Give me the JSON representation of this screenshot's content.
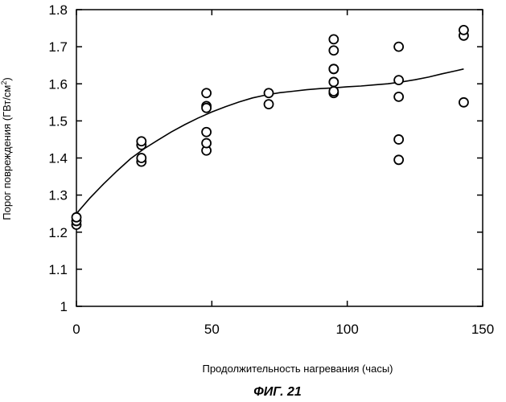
{
  "chart_data": {
    "type": "scatter",
    "title": "",
    "caption": "ФИГ. 21",
    "xlabel": "Продолжительность нагревания (часы)",
    "ylabel_main": "Порог повреждения (ГВт/см",
    "ylabel_sup": "2",
    "ylabel_end": ")",
    "xlim": [
      0,
      150
    ],
    "ylim": [
      1.0,
      1.8
    ],
    "xticks": [
      0,
      50,
      100,
      150
    ],
    "xtick_labels": [
      "0",
      "50",
      "100",
      "150"
    ],
    "yticks": [
      1.0,
      1.1,
      1.2,
      1.3,
      1.4,
      1.5,
      1.6,
      1.7,
      1.8
    ],
    "ytick_labels": [
      "1",
      "1.1",
      "1.2",
      "1.3",
      "1.4",
      "1.5",
      "1.6",
      "1.7",
      "1.8"
    ],
    "grid": false,
    "legend": "none",
    "series": [
      {
        "kind": "points",
        "marker": "open-circle",
        "x": [
          0,
          0,
          0,
          24,
          24,
          24,
          24,
          48,
          48,
          48,
          48,
          48,
          48,
          71,
          71,
          95,
          95,
          95,
          95,
          95,
          95,
          95,
          119,
          119,
          119,
          119,
          119,
          143,
          143,
          143
        ],
        "y": [
          1.22,
          1.23,
          1.24,
          1.39,
          1.4,
          1.435,
          1.445,
          1.42,
          1.44,
          1.47,
          1.54,
          1.575,
          1.535,
          1.545,
          1.575,
          1.575,
          1.58,
          1.605,
          1.64,
          1.69,
          1.72,
          1.64,
          1.395,
          1.45,
          1.565,
          1.61,
          1.7,
          1.55,
          1.73,
          1.745
        ]
      },
      {
        "kind": "fit-curve",
        "x": [
          0,
          5,
          10,
          15,
          20,
          25,
          30,
          35,
          40,
          45,
          50,
          55,
          60,
          65,
          70,
          75,
          80,
          85,
          90,
          95,
          100,
          105,
          110,
          115,
          120,
          125,
          130,
          135,
          140,
          143
        ],
        "y": [
          1.25,
          1.292,
          1.33,
          1.365,
          1.398,
          1.425,
          1.448,
          1.47,
          1.49,
          1.508,
          1.524,
          1.538,
          1.551,
          1.562,
          1.57,
          1.576,
          1.58,
          1.584,
          1.587,
          1.589,
          1.592,
          1.594,
          1.597,
          1.6,
          1.605,
          1.611,
          1.618,
          1.627,
          1.635,
          1.64
        ]
      }
    ]
  }
}
